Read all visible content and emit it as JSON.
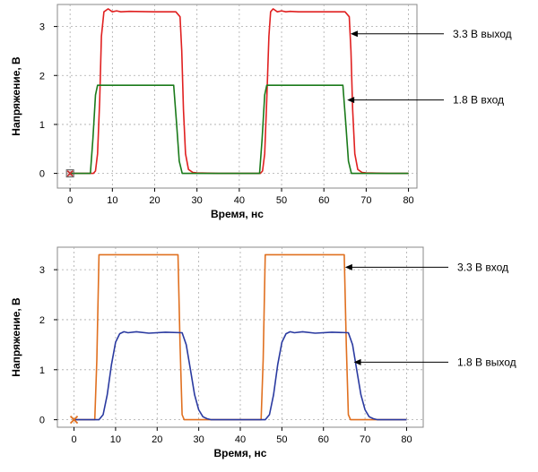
{
  "chart_data": [
    {
      "type": "line",
      "xlabel": "Время, нс",
      "ylabel": "Напряжение, В",
      "xlim": [
        -3,
        82
      ],
      "ylim": [
        -0.3,
        3.45
      ],
      "x_ticks": [
        0,
        10,
        20,
        30,
        40,
        50,
        60,
        70,
        80
      ],
      "y_ticks": [
        0,
        1,
        2,
        3
      ],
      "grid": true,
      "origin_marker": "x-square",
      "series": [
        {
          "color": "#e02020",
          "x": [
            0,
            5.5,
            6,
            6.5,
            7,
            7.4,
            8,
            9,
            10,
            11,
            12,
            14,
            20,
            25,
            26,
            26.4,
            26.8,
            27.3,
            28,
            29,
            30,
            35,
            45,
            45.5,
            46,
            46.5,
            47,
            47.4,
            48,
            49,
            50,
            51,
            52,
            54,
            60,
            65,
            66,
            66.4,
            66.8,
            67.3,
            68,
            69,
            70,
            75,
            80
          ],
          "y": [
            0,
            0,
            0.05,
            0.4,
            1.5,
            2.8,
            3.3,
            3.36,
            3.3,
            3.32,
            3.3,
            3.31,
            3.3,
            3.3,
            3.2,
            2.5,
            1.3,
            0.4,
            0.08,
            0.02,
            0.01,
            0,
            0,
            0.05,
            0.4,
            1.5,
            2.8,
            3.3,
            3.36,
            3.3,
            3.32,
            3.3,
            3.31,
            3.3,
            3.3,
            3.3,
            3.2,
            2.5,
            1.3,
            0.4,
            0.08,
            0.02,
            0.01,
            0,
            0
          ],
          "annotation": "3.3 В выход",
          "annotation_point": [
            66.3,
            2.85
          ]
        },
        {
          "color": "#1a7a1a",
          "x": [
            0,
            4.8,
            5.4,
            6,
            6.5,
            10,
            20,
            24.5,
            25.2,
            25.8,
            26.5,
            30,
            40,
            44.8,
            45.4,
            46,
            46.5,
            50,
            60,
            64.5,
            65.2,
            65.8,
            66.5,
            70,
            80
          ],
          "y": [
            0,
            0,
            0.7,
            1.6,
            1.8,
            1.8,
            1.8,
            1.8,
            1.0,
            0.25,
            0,
            0,
            0,
            0,
            0.7,
            1.6,
            1.8,
            1.8,
            1.8,
            1.8,
            1.0,
            0.25,
            0,
            0,
            0
          ],
          "annotation": "1.8 В вход",
          "annotation_point": [
            65.5,
            1.5
          ]
        }
      ]
    },
    {
      "type": "line",
      "xlabel": "Время, нс",
      "ylabel": "Напряжение, В",
      "xlim": [
        -4,
        84
      ],
      "ylim": [
        -0.15,
        3.45
      ],
      "x_ticks": [
        0,
        10,
        20,
        30,
        40,
        50,
        60,
        70,
        80
      ],
      "y_ticks": [
        0,
        1,
        2,
        3
      ],
      "grid": true,
      "origin_marker": "x",
      "series": [
        {
          "color": "#e07020",
          "x": [
            0,
            5,
            5.5,
            6,
            6.5,
            10,
            20,
            25,
            25.5,
            26,
            26.5,
            30,
            45,
            45.5,
            46,
            46.5,
            50,
            60,
            65,
            65.5,
            66,
            66.5,
            70,
            80
          ],
          "y": [
            0,
            0,
            1.2,
            3.3,
            3.3,
            3.3,
            3.3,
            3.3,
            1.5,
            0.1,
            0,
            0,
            0,
            1.2,
            3.3,
            3.3,
            3.3,
            3.3,
            3.3,
            1.5,
            0.1,
            0,
            0,
            0
          ],
          "annotation": "3.3 В вход",
          "annotation_point": [
            65.2,
            3.05
          ]
        },
        {
          "color": "#2a3aa0",
          "x": [
            0,
            6,
            7,
            8,
            9,
            10,
            11,
            12,
            13,
            15,
            18,
            22,
            26,
            27,
            28,
            29,
            30,
            31,
            32,
            33,
            35,
            40,
            46,
            47,
            48,
            49,
            50,
            51,
            52,
            53,
            55,
            58,
            62,
            66,
            67,
            68,
            69,
            70,
            71,
            72,
            73,
            75,
            80
          ],
          "y": [
            0,
            0,
            0.1,
            0.5,
            1.1,
            1.55,
            1.72,
            1.76,
            1.74,
            1.76,
            1.73,
            1.75,
            1.74,
            1.5,
            1.0,
            0.5,
            0.2,
            0.06,
            0.02,
            0,
            0,
            0,
            0,
            0.1,
            0.5,
            1.1,
            1.55,
            1.72,
            1.76,
            1.74,
            1.76,
            1.73,
            1.75,
            1.74,
            1.5,
            1.0,
            0.5,
            0.2,
            0.06,
            0.02,
            0,
            0,
            0
          ],
          "annotation": "1.8 В выход",
          "annotation_point": [
            67.3,
            1.15
          ]
        }
      ]
    }
  ]
}
